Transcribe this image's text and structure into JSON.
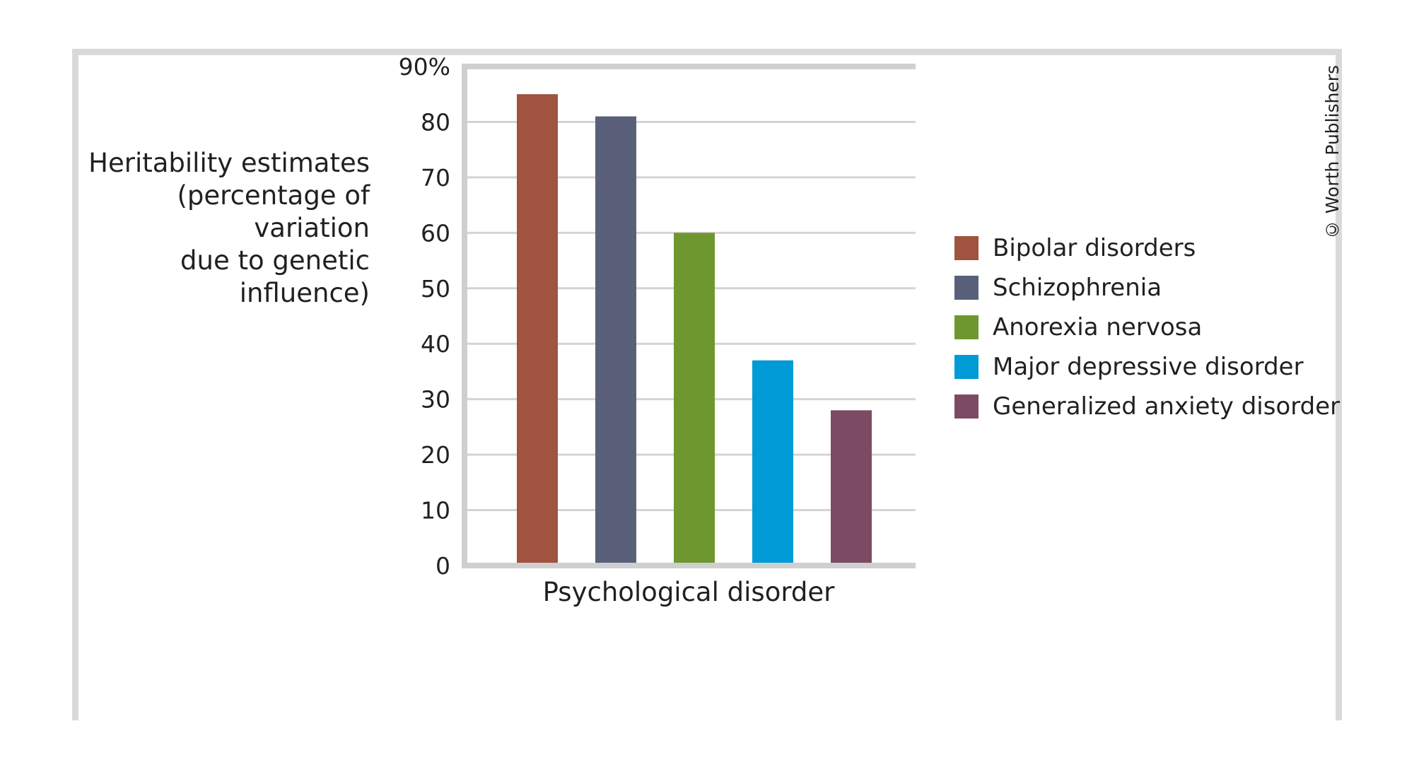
{
  "chart_data": {
    "type": "bar",
    "categories": [
      "Bipolar disorders",
      "Schizophrenia",
      "Anorexia nervosa",
      "Major depressive disorder",
      "Generalized anxiety disorder"
    ],
    "values": [
      85,
      81,
      60,
      37,
      28
    ],
    "colors": [
      "#a0533f",
      "#5a6079",
      "#6e972f",
      "#009ad7",
      "#7c4a63"
    ],
    "ylabel": "Heritability estimates\n(percentage of variation\ndue to genetic\ninfluence)",
    "xlabel": "Psychological disorder",
    "ylim": [
      0,
      90
    ],
    "yticks": [
      0,
      10,
      20,
      30,
      40,
      50,
      60,
      70,
      80,
      90
    ],
    "ytick_labels": [
      "0",
      "10",
      "20",
      "30",
      "40",
      "50",
      "60",
      "70",
      "80",
      "90%"
    ],
    "grid": true,
    "legend_position": "right"
  },
  "copyright": "© Worth Publishers"
}
